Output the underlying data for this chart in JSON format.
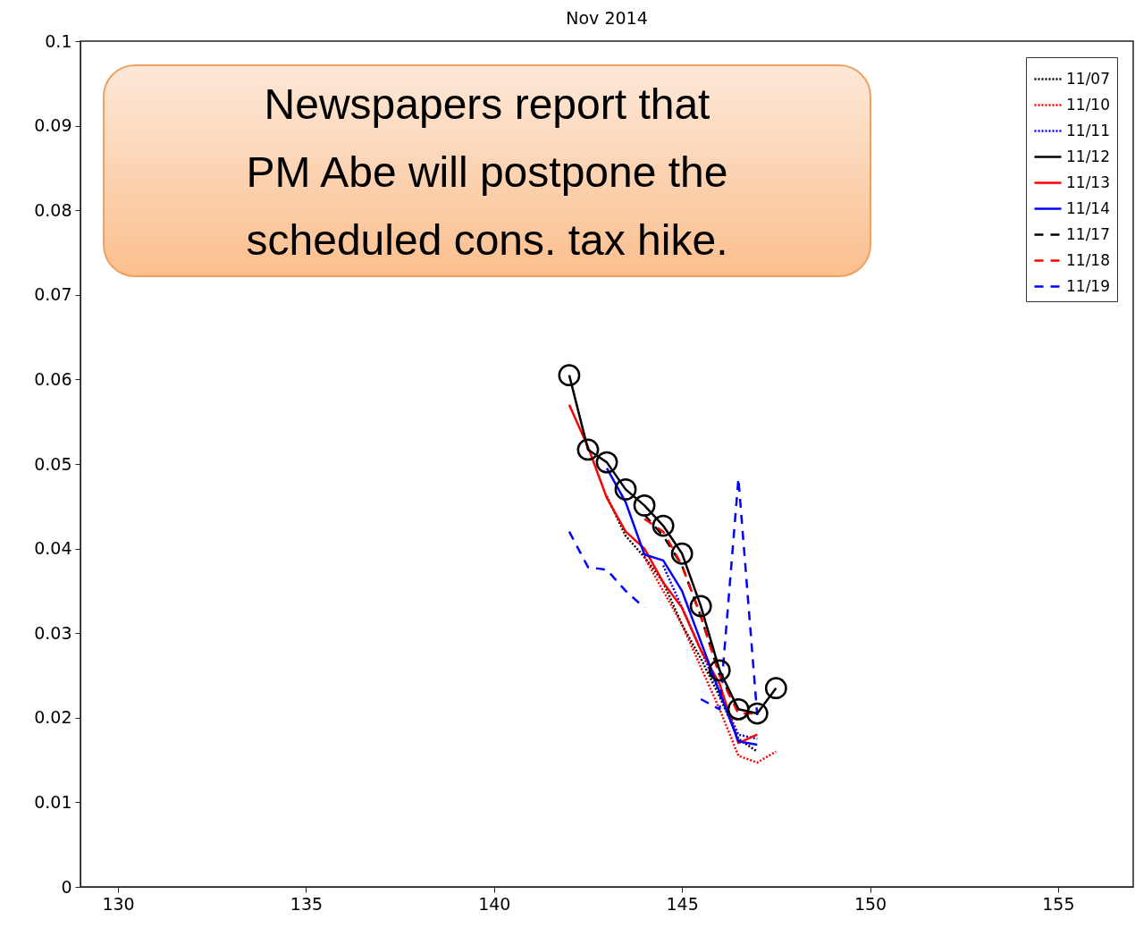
{
  "chart_data": {
    "type": "line",
    "title": "Nov 2014",
    "annotations": [
      "Newspapers report that PM Abe will postpone the scheduled cons. tax hike."
    ],
    "x": [
      142,
      142.5,
      143,
      143.5,
      144,
      144.5,
      145,
      145.5,
      146,
      146.5,
      147,
      147.5
    ],
    "xlim": [
      129,
      157
    ],
    "xticks": [
      130,
      135,
      140,
      145,
      150,
      155
    ],
    "ylim": [
      0,
      0.1
    ],
    "yticks": [
      0,
      0.01,
      0.02,
      0.03,
      0.04,
      0.05,
      0.06,
      0.07,
      0.08,
      0.09,
      0.1
    ],
    "grid": false,
    "legend": "top right",
    "series": [
      {
        "name": "11/07",
        "color": "#000000",
        "line_style": "dotted",
        "values": [
          null,
          null,
          0.0462,
          0.0415,
          0.039,
          0.036,
          0.031,
          0.027,
          0.0225,
          0.0175,
          0.016,
          null
        ]
      },
      {
        "name": "11/10",
        "color": "#ff0000",
        "line_style": "dotted",
        "values": [
          null,
          null,
          null,
          null,
          0.039,
          0.035,
          0.031,
          0.026,
          0.021,
          0.0155,
          0.0147,
          0.016
        ]
      },
      {
        "name": "11/11",
        "color": "#0000ff",
        "line_style": "dotted",
        "values": [
          null,
          null,
          null,
          null,
          null,
          0.038,
          0.033,
          0.028,
          0.023,
          0.018,
          0.0175,
          null
        ]
      },
      {
        "name": "11/12",
        "color": "#000000",
        "line_style": "solid",
        "marker": "circle",
        "values": [
          0.0605,
          0.0517,
          0.0502,
          0.047,
          0.0451,
          0.0427,
          0.0394,
          0.0332,
          0.0256,
          0.021,
          0.0205,
          0.0235
        ]
      },
      {
        "name": "11/13",
        "color": "#ff0000",
        "line_style": "solid",
        "values": [
          0.057,
          0.052,
          0.046,
          0.042,
          0.04,
          0.036,
          0.033,
          0.028,
          0.024,
          0.017,
          0.018,
          null
        ]
      },
      {
        "name": "11/14",
        "color": "#0000ff",
        "line_style": "solid",
        "values": [
          null,
          null,
          0.0495,
          0.0455,
          0.0393,
          0.0386,
          0.035,
          0.029,
          0.023,
          0.0172,
          0.0168,
          null
        ]
      },
      {
        "name": "11/17",
        "color": "#000000",
        "line_style": "dashed",
        "values": [
          null,
          null,
          null,
          null,
          0.044,
          0.0415,
          0.038,
          0.032,
          0.025,
          0.021,
          null,
          null
        ]
      },
      {
        "name": "11/18",
        "color": "#ff0000",
        "line_style": "dashed",
        "values": [
          null,
          null,
          null,
          null,
          0.0435,
          0.042,
          0.038,
          0.032,
          0.025,
          0.0205,
          0.0205,
          null
        ]
      },
      {
        "name": "11/19",
        "color": "#0000ff",
        "line_style": "dashed",
        "values": [
          0.042,
          0.0378,
          0.0375,
          0.035,
          0.033,
          null,
          null,
          0.0222,
          0.021,
          0.0483,
          0.0203,
          null
        ]
      }
    ]
  }
}
